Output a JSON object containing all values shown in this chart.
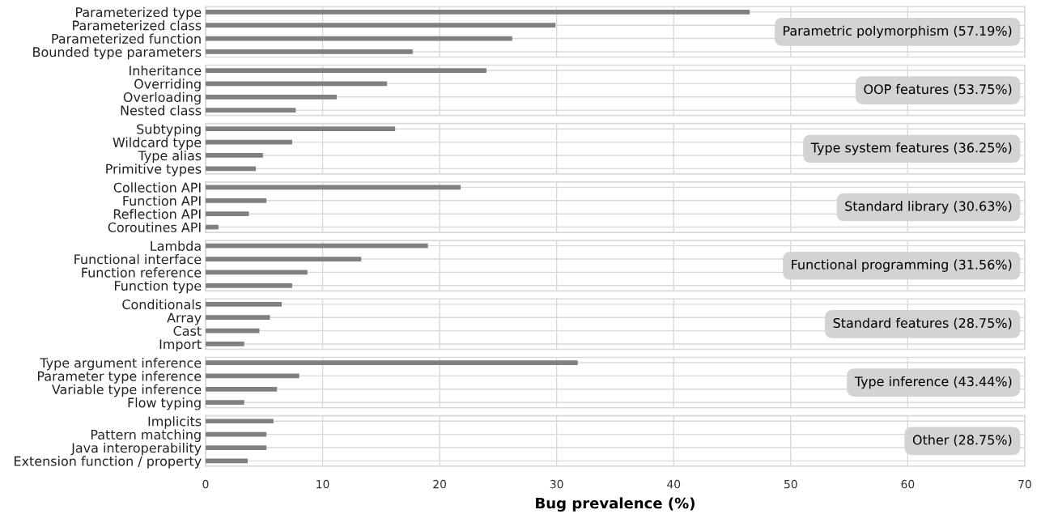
{
  "chart_data": [
    {
      "type": "bar",
      "orientation": "horizontal",
      "categories": [
        "Parameterized type",
        "Parameterized class",
        "Parameterized function",
        "Bounded type parameters"
      ],
      "values": [
        46.5,
        29.9,
        26.2,
        17.7
      ],
      "color": "#808080",
      "xlim": [
        0,
        70
      ],
      "xticks": [
        0,
        10,
        20,
        30,
        40,
        50,
        60,
        70
      ],
      "grid": true,
      "tick_labels": "y",
      "annotations": [
        "Parametric polymorphism (57.19%)"
      ]
    },
    {
      "type": "bar",
      "orientation": "horizontal",
      "categories": [
        "Inheritance",
        "Overriding",
        "Overloading",
        "Nested class"
      ],
      "values": [
        24.0,
        15.5,
        11.2,
        7.7
      ],
      "color": "#808080",
      "xlim": [
        0,
        70
      ],
      "xticks": [
        0,
        10,
        20,
        30,
        40,
        50,
        60,
        70
      ],
      "grid": true,
      "tick_labels": "y",
      "annotations": [
        "OOP features (53.75%)"
      ]
    },
    {
      "type": "bar",
      "orientation": "horizontal",
      "categories": [
        "Subtyping",
        "Wildcard type",
        "Type alias",
        "Primitive types"
      ],
      "values": [
        16.2,
        7.4,
        4.9,
        4.3
      ],
      "color": "#808080",
      "xlim": [
        0,
        70
      ],
      "xticks": [
        0,
        10,
        20,
        30,
        40,
        50,
        60,
        70
      ],
      "grid": true,
      "tick_labels": "y",
      "annotations": [
        "Type system features (36.25%)"
      ]
    },
    {
      "type": "bar",
      "orientation": "horizontal",
      "categories": [
        "Collection API",
        "Function API",
        "Reflection API",
        "Coroutines API"
      ],
      "values": [
        21.8,
        5.2,
        3.7,
        1.1
      ],
      "color": "#808080",
      "xlim": [
        0,
        70
      ],
      "xticks": [
        0,
        10,
        20,
        30,
        40,
        50,
        60,
        70
      ],
      "grid": true,
      "tick_labels": "y",
      "annotations": [
        "Standard library (30.63%)"
      ]
    },
    {
      "type": "bar",
      "orientation": "horizontal",
      "categories": [
        "Lambda",
        "Functional interface",
        "Function reference",
        "Function type"
      ],
      "values": [
        19.0,
        13.3,
        8.7,
        7.4
      ],
      "color": "#808080",
      "xlim": [
        0,
        70
      ],
      "xticks": [
        0,
        10,
        20,
        30,
        40,
        50,
        60,
        70
      ],
      "grid": true,
      "tick_labels": "y",
      "annotations": [
        "Functional programming (31.56%)"
      ]
    },
    {
      "type": "bar",
      "orientation": "horizontal",
      "categories": [
        "Conditionals",
        "Array",
        "Cast",
        "Import"
      ],
      "values": [
        6.5,
        5.5,
        4.6,
        3.3
      ],
      "color": "#808080",
      "xlim": [
        0,
        70
      ],
      "xticks": [
        0,
        10,
        20,
        30,
        40,
        50,
        60,
        70
      ],
      "grid": true,
      "tick_labels": "y",
      "annotations": [
        "Standard features (28.75%)"
      ]
    },
    {
      "type": "bar",
      "orientation": "horizontal",
      "categories": [
        "Type argument inference",
        "Parameter type inference",
        "Variable type inference",
        "Flow typing"
      ],
      "values": [
        31.8,
        8.0,
        6.1,
        3.3
      ],
      "color": "#808080",
      "xlim": [
        0,
        70
      ],
      "xticks": [
        0,
        10,
        20,
        30,
        40,
        50,
        60,
        70
      ],
      "grid": true,
      "tick_labels": "y",
      "annotations": [
        "Type inference (43.44%)"
      ]
    },
    {
      "type": "bar",
      "orientation": "horizontal",
      "categories": [
        "Implicits",
        "Pattern matching",
        "Java interoperability",
        "Extension function / property"
      ],
      "values": [
        5.8,
        5.2,
        5.2,
        3.6
      ],
      "color": "#808080",
      "xlim": [
        0,
        70
      ],
      "xticks": [
        0,
        10,
        20,
        30,
        40,
        50,
        60,
        70
      ],
      "grid": true,
      "xlabel": "Bug prevalence (%)",
      "annotations": [
        "Other (28.75%)"
      ]
    }
  ]
}
